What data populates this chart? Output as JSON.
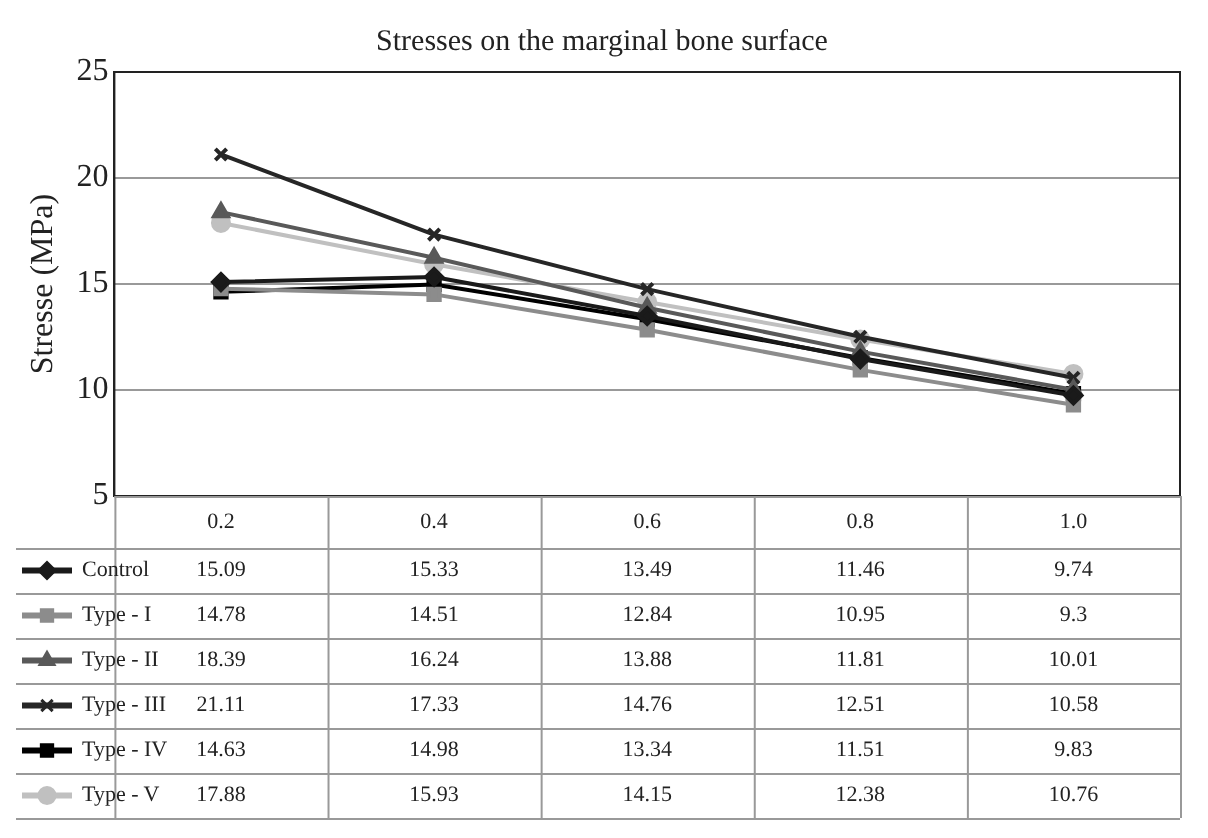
{
  "chart_data": {
    "type": "line",
    "title": "Stresses on the marginal bone surface",
    "ylabel": "Stresse (MPa)",
    "categories": [
      "0.2",
      "0.4",
      "0.6",
      "0.8",
      "1.0"
    ],
    "series": [
      {
        "name": "Control",
        "color": "#1a1a1a",
        "marker": "diamond",
        "values": [
          15.09,
          15.33,
          13.49,
          11.46,
          9.74
        ]
      },
      {
        "name": "Type - I",
        "color": "#8c8c8c",
        "marker": "square",
        "values": [
          14.78,
          14.51,
          12.84,
          10.95,
          9.3
        ]
      },
      {
        "name": "Type - II",
        "color": "#595959",
        "marker": "triangle",
        "values": [
          18.39,
          16.24,
          13.88,
          11.81,
          10.01
        ]
      },
      {
        "name": "Type - III",
        "color": "#262626",
        "marker": "cross",
        "values": [
          21.11,
          17.33,
          14.76,
          12.51,
          10.58
        ]
      },
      {
        "name": "Type - IV",
        "color": "#000000",
        "marker": "square",
        "values": [
          14.63,
          14.98,
          13.34,
          11.51,
          9.83
        ]
      },
      {
        "name": "Type - V",
        "color": "#c0c0c0",
        "marker": "circle",
        "values": [
          17.88,
          15.93,
          14.15,
          12.38,
          10.76
        ]
      }
    ],
    "ylim": [
      5,
      25
    ],
    "yticks": [
      5,
      10,
      15,
      20,
      25
    ],
    "grid": "y",
    "legend": "bottom",
    "data_labels": true,
    "line_style": "solid"
  }
}
